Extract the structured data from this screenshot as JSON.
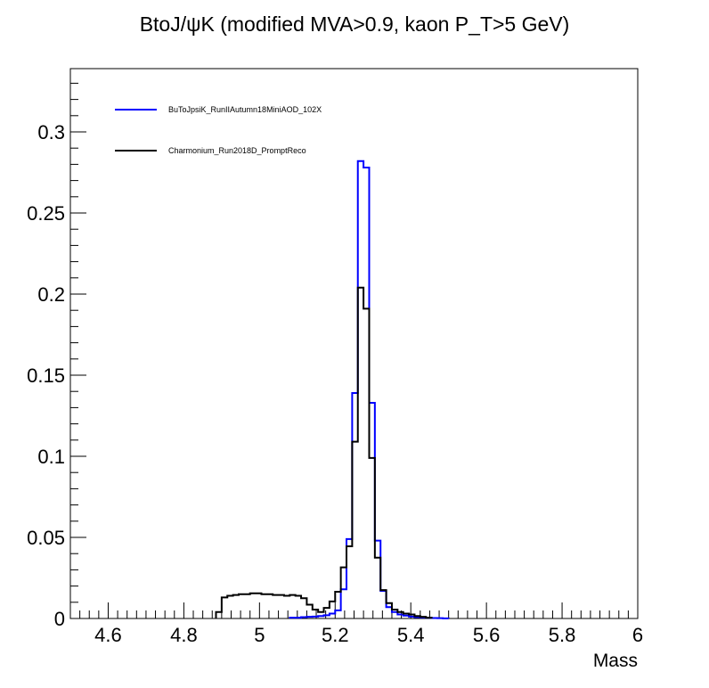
{
  "chart_data": {
    "type": "histogram",
    "title": "BtoJ/ψK (modified MVA>0.9, kaon P_T>5 GeV)",
    "xlabel": "Mass",
    "ylabel": "",
    "xlim": [
      4.5,
      6.0
    ],
    "ylim": [
      0,
      0.335
    ],
    "xticks": [
      4.6,
      4.8,
      5.0,
      5.2,
      5.4,
      5.6,
      5.8,
      6.0
    ],
    "xtick_labels": [
      "4.6",
      "4.8",
      "5",
      "5.2",
      "5.4",
      "5.6",
      "5.8",
      "6"
    ],
    "yticks": [
      0,
      0.05,
      0.1,
      0.15,
      0.2,
      0.25,
      0.3
    ],
    "ytick_labels": [
      "0",
      "0.05",
      "0.1",
      "0.15",
      "0.2",
      "0.25",
      "0.3"
    ],
    "bin_width": 0.015,
    "legend_position": "top-left",
    "grid": false,
    "series": [
      {
        "name": "BuToJpsiK_RunIIAutumn18MiniAOD_102X",
        "color": "#0000ff",
        "bins": [
          [
            5.08,
            0.0005
          ],
          [
            5.095,
            0.0005
          ],
          [
            5.11,
            0.0008
          ],
          [
            5.125,
            0.001
          ],
          [
            5.14,
            0.0012
          ],
          [
            5.155,
            0.0015
          ],
          [
            5.17,
            0.002
          ],
          [
            5.185,
            0.003
          ],
          [
            5.2,
            0.005
          ],
          [
            5.215,
            0.018
          ],
          [
            5.23,
            0.049
          ],
          [
            5.245,
            0.139
          ],
          [
            5.26,
            0.282
          ],
          [
            5.275,
            0.278
          ],
          [
            5.29,
            0.133
          ],
          [
            5.305,
            0.048
          ],
          [
            5.32,
            0.017
          ],
          [
            5.335,
            0.007
          ],
          [
            5.35,
            0.004
          ],
          [
            5.365,
            0.0025
          ],
          [
            5.38,
            0.0018
          ],
          [
            5.395,
            0.0012
          ],
          [
            5.41,
            0.0008
          ],
          [
            5.425,
            0.0006
          ],
          [
            5.44,
            0.0004
          ],
          [
            5.455,
            0.0003
          ],
          [
            5.47,
            0.0002
          ],
          [
            5.485,
            0.0001
          ]
        ]
      },
      {
        "name": "Charmonium_Run2018D_PromptReco",
        "color": "#000000",
        "bins": [
          [
            4.885,
            0.004
          ],
          [
            4.9,
            0.013
          ],
          [
            4.915,
            0.014
          ],
          [
            4.93,
            0.0145
          ],
          [
            4.945,
            0.015
          ],
          [
            4.96,
            0.015
          ],
          [
            4.975,
            0.0155
          ],
          [
            4.99,
            0.0155
          ],
          [
            5.005,
            0.015
          ],
          [
            5.02,
            0.015
          ],
          [
            5.035,
            0.0145
          ],
          [
            5.05,
            0.0145
          ],
          [
            5.065,
            0.014
          ],
          [
            5.08,
            0.0145
          ],
          [
            5.095,
            0.014
          ],
          [
            5.11,
            0.0125
          ],
          [
            5.125,
            0.0085
          ],
          [
            5.14,
            0.0055
          ],
          [
            5.155,
            0.004
          ],
          [
            5.17,
            0.0065
          ],
          [
            5.185,
            0.0105
          ],
          [
            5.2,
            0.0165
          ],
          [
            5.215,
            0.0315
          ],
          [
            5.23,
            0.0445
          ],
          [
            5.245,
            0.109
          ],
          [
            5.26,
            0.204
          ],
          [
            5.275,
            0.191
          ],
          [
            5.29,
            0.099
          ],
          [
            5.305,
            0.0375
          ],
          [
            5.32,
            0.0175
          ],
          [
            5.335,
            0.0095
          ],
          [
            5.35,
            0.0055
          ],
          [
            5.365,
            0.004
          ],
          [
            5.38,
            0.003
          ],
          [
            5.395,
            0.0025
          ],
          [
            5.41,
            0.0015
          ],
          [
            5.425,
            0.001
          ],
          [
            5.44,
            0.0005
          ]
        ]
      }
    ]
  }
}
